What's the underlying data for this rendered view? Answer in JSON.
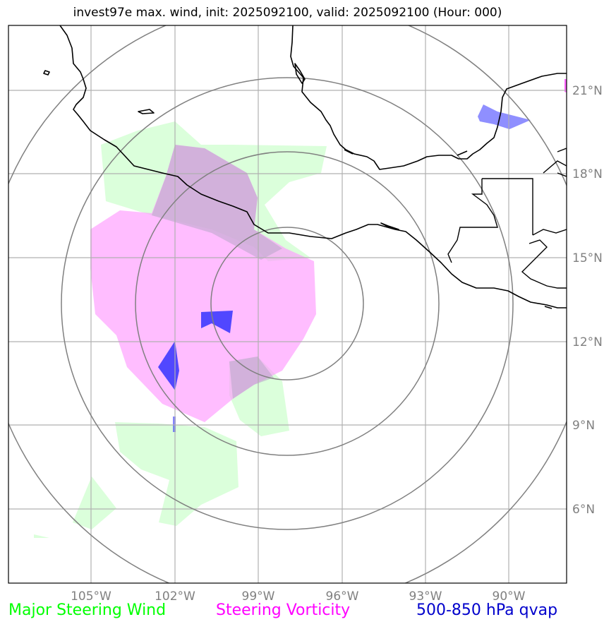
{
  "title": "invest97e max. wind, init: 2025092100, valid: 2025092100 (Hour: 000)",
  "map": {
    "lat_ticks": [
      "21°N",
      "18°N",
      "15°N",
      "12°N",
      "9°N",
      "6°N"
    ],
    "lon_ticks": [
      "105°W",
      "102°W",
      "99°W",
      "96°W",
      "93°W",
      "90°W"
    ],
    "range_rings": 4,
    "colors": {
      "steering_wind": "#ccffcc",
      "steering_vorticity": "#ff99ff",
      "qvap": "#0000cc",
      "coastline": "#000000",
      "grid": "#b0b0b0",
      "rings": "#808080"
    }
  },
  "legend": {
    "wind": {
      "label": "Major Steering Wind",
      "color": "#00ff00"
    },
    "vorticity": {
      "label": "Steering Vorticity",
      "color": "#ff00ff"
    },
    "qvap": {
      "label": "500-850 hPa qvap",
      "color": "#0000cc"
    }
  }
}
